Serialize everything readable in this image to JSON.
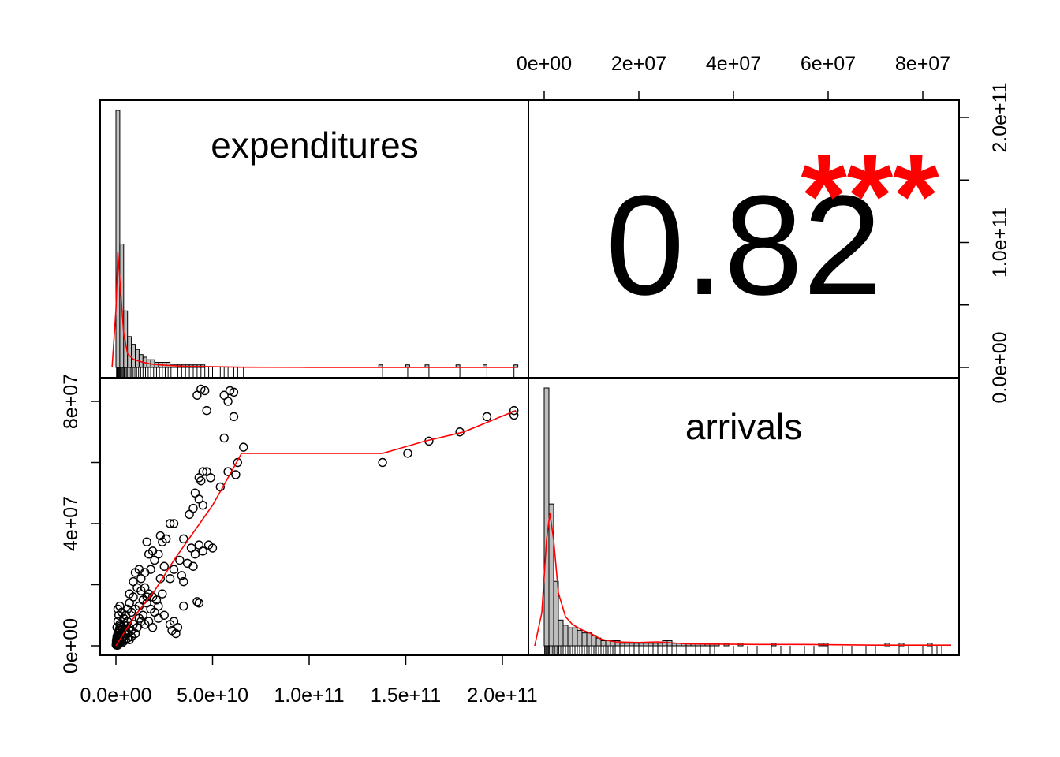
{
  "chart_data": {
    "type": "scatter",
    "title": "",
    "variables": [
      "expenditures",
      "arrivals"
    ],
    "correlation": {
      "value": "0.82",
      "stars": "***",
      "star_color": "#ff0000"
    },
    "colors": {
      "smooth_line": "#ff0000",
      "hist_fill": "#bebebe",
      "points": "#000000"
    },
    "axes": {
      "expenditures": {
        "range": [
          0,
          210000000000
        ],
        "ticks": [
          0,
          50000000000,
          100000000000,
          150000000000,
          200000000000
        ],
        "tick_labels": [
          "0.0e+00",
          "5.0e+10",
          "1.0e+11",
          "1.5e+11",
          "2.0e+11"
        ],
        "right_ticks": [
          0,
          50000000000,
          100000000000,
          150000000000,
          200000000000
        ],
        "right_tick_labels": [
          "0.0e+00",
          "",
          "1.0e+11",
          "",
          "2.0e+11"
        ]
      },
      "arrivals": {
        "range": [
          0,
          85000000
        ],
        "ticks": [
          0,
          20000000,
          40000000,
          60000000,
          80000000
        ],
        "tick_labels": [
          "0e+00",
          "2e+07",
          "4e+07",
          "6e+07",
          "8e+07"
        ],
        "left_ticks": [
          0,
          20000000,
          40000000,
          60000000,
          80000000
        ],
        "left_tick_labels": [
          "0e+00",
          "",
          "4e+07",
          "",
          "8e+07"
        ]
      }
    },
    "hist_expenditures": {
      "bin_width": 2000000000,
      "counts": [
        100,
        48,
        22,
        12,
        9,
        7,
        5,
        4,
        3,
        3,
        2,
        2,
        2,
        2,
        1,
        1,
        1,
        1,
        1,
        1,
        1,
        1,
        1,
        0,
        0,
        0,
        0,
        0,
        0,
        0,
        0,
        0,
        0,
        0,
        0,
        0,
        0,
        0,
        0,
        0,
        0,
        0,
        0,
        0,
        0,
        0,
        0,
        0,
        0,
        0,
        0,
        0,
        0,
        0,
        0,
        0,
        0,
        0,
        0,
        0,
        0,
        0,
        0,
        0,
        0,
        0,
        0,
        0,
        1,
        0,
        0,
        0,
        0,
        0,
        0,
        1,
        0,
        0,
        0,
        0,
        1,
        0,
        0,
        0,
        0,
        0,
        0,
        0,
        1,
        0,
        0,
        0,
        0,
        0,
        0,
        1,
        0,
        0,
        0,
        0,
        0,
        0,
        0,
        1
      ]
    },
    "hist_arrivals": {
      "bin_width": 1000000,
      "counts": [
        100,
        55,
        25,
        10,
        8,
        7,
        7,
        6,
        5,
        5,
        4,
        3,
        2,
        2,
        2,
        2,
        1,
        1,
        1,
        1,
        1,
        1,
        1,
        1,
        1,
        2,
        2,
        1,
        1,
        1,
        1,
        1,
        1,
        1,
        1,
        1,
        1,
        0,
        1,
        0,
        0,
        1,
        0,
        0,
        0,
        0,
        0,
        0,
        1,
        0,
        0,
        0,
        0,
        0,
        0,
        0,
        0,
        0,
        1,
        1,
        0,
        0,
        0,
        0,
        0,
        0,
        0,
        0,
        0,
        0,
        0,
        0,
        1,
        0,
        0,
        1,
        0,
        0,
        0,
        0,
        0,
        1,
        0
      ]
    },
    "density_expenditures": [
      [
        -2000000000,
        0
      ],
      [
        0,
        50
      ],
      [
        1000000000,
        100
      ],
      [
        2500000000,
        65
      ],
      [
        4000000000,
        30
      ],
      [
        6000000000,
        12
      ],
      [
        9000000000,
        7
      ],
      [
        13000000000,
        5
      ],
      [
        18000000000,
        3
      ],
      [
        25000000000,
        2
      ],
      [
        35000000000,
        1
      ],
      [
        50000000000,
        0.6
      ],
      [
        65000000000,
        0.2
      ],
      [
        100000000000,
        0.1
      ],
      [
        207000000000,
        0.1
      ]
    ],
    "density_arrivals": [
      [
        -2000000,
        0
      ],
      [
        -500000,
        25
      ],
      [
        500000,
        80
      ],
      [
        1200000,
        100
      ],
      [
        2000000,
        80
      ],
      [
        3000000,
        40
      ],
      [
        4500000,
        22
      ],
      [
        6000000,
        16
      ],
      [
        8000000,
        12
      ],
      [
        10000000,
        9
      ],
      [
        12000000,
        5
      ],
      [
        15000000,
        3
      ],
      [
        20000000,
        2.5
      ],
      [
        24000000,
        3
      ],
      [
        30000000,
        1.5
      ],
      [
        45000000,
        1
      ],
      [
        55000000,
        1
      ],
      [
        70000000,
        0.5
      ],
      [
        86000000,
        0.5
      ]
    ],
    "scatter_points": [
      [
        42000000000.0,
        82000000.0
      ],
      [
        44000000000.0,
        84000000.0
      ],
      [
        46000000000.0,
        83500000.0
      ],
      [
        56000000000.0,
        82000000.0
      ],
      [
        59000000000.0,
        83500000.0
      ],
      [
        61000000000.0,
        83000000.0
      ],
      [
        47000000000.0,
        77000000.0
      ],
      [
        58000000000.0,
        80000000.0
      ],
      [
        61000000000.0,
        75000000.0
      ],
      [
        66000000000.0,
        65000000.0
      ],
      [
        63000000000.0,
        60000000.0
      ],
      [
        56000000000.0,
        68000000.0
      ],
      [
        58000000000.0,
        57000000.0
      ],
      [
        62000000000.0,
        56000000.0
      ],
      [
        54000000000.0,
        52000000.0
      ],
      [
        45000000000.0,
        57000000.0
      ],
      [
        43000000000.0,
        55000000.0
      ],
      [
        44000000000.0,
        54000000.0
      ],
      [
        47000000000.0,
        57000000.0
      ],
      [
        49000000000.0,
        55000000.0
      ],
      [
        41000000000.0,
        50000000.0
      ],
      [
        43000000000.0,
        48000000.0
      ],
      [
        40000000000.0,
        45000000.0
      ],
      [
        45000000000.0,
        46000000.0
      ],
      [
        38000000000.0,
        43000000.0
      ],
      [
        35000000000.0,
        35000000.0
      ],
      [
        39000000000.0,
        32000000.0
      ],
      [
        41000000000.0,
        30000000.0
      ],
      [
        43000000000.0,
        33000000.0
      ],
      [
        45000000000.0,
        31000000.0
      ],
      [
        48000000000.0,
        33000000.0
      ],
      [
        50000000000.0,
        32000000.0
      ],
      [
        40000000000.0,
        26000000.0
      ],
      [
        37000000000.0,
        27000000.0
      ],
      [
        34000000000.0,
        23000000.0
      ],
      [
        35000000000.0,
        21000000.0
      ],
      [
        33000000000.0,
        28000000.0
      ],
      [
        28000000000.0,
        40000000.0
      ],
      [
        30000000000.0,
        40000000.0
      ],
      [
        26000000000.0,
        35000000.0
      ],
      [
        23000000000.0,
        36000000.0
      ],
      [
        24000000000.0,
        34000000.0
      ],
      [
        22000000000.0,
        30000000.0
      ],
      [
        20000000000.0,
        28000000.0
      ],
      [
        25000000000.0,
        26000000.0
      ],
      [
        23000000000.0,
        22000000.0
      ],
      [
        28000000000.0,
        22000000.0
      ],
      [
        30000000000.0,
        25000000.0
      ],
      [
        16000000000.0,
        34000000.0
      ],
      [
        19000000000.0,
        31000000.0
      ],
      [
        17000000000.0,
        30000000.0
      ],
      [
        18000000000.0,
        25000000.0
      ],
      [
        15000000000.0,
        24000000.0
      ],
      [
        13000000000.0,
        22000000.0
      ],
      [
        12000000000.0,
        25000000.0
      ],
      [
        10000000000.0,
        24000000.0
      ],
      [
        9000000000.0,
        21000000.0
      ],
      [
        11000000000.0,
        19000000.0
      ],
      [
        13000000000.0,
        18000000.0
      ],
      [
        15000000000.0,
        19000000.0
      ],
      [
        17000000000.0,
        17000000.0
      ],
      [
        19000000000.0,
        16000000.0
      ],
      [
        21000000000.0,
        15000000.0
      ],
      [
        22000000000.0,
        13000000.0
      ],
      [
        24000000000.0,
        17000000.0
      ],
      [
        35000000000.0,
        13000000.0
      ],
      [
        43000000000.0,
        14000000.0
      ],
      [
        42000000000.0,
        14500000.0
      ],
      [
        28000000000.0,
        7000000.0
      ],
      [
        30000000000.0,
        8000000.0
      ],
      [
        32000000000.0,
        6000000.0
      ],
      [
        29000000000.0,
        5000000.0
      ],
      [
        31000000000.0,
        4000000.0
      ],
      [
        16000000000.0,
        14000000.0
      ],
      [
        18000000000.0,
        12000000.0
      ],
      [
        20000000000.0,
        11000000.0
      ],
      [
        14000000000.0,
        10000000.0
      ],
      [
        12000000000.0,
        13000000.0
      ],
      [
        10000000000.0,
        12000000.0
      ],
      [
        8000000000.0,
        11000000.0
      ],
      [
        7000000000.0,
        14000000.0
      ],
      [
        6000000000.0,
        12000000.0
      ],
      [
        5000000000.0,
        10000000.0
      ],
      [
        4000000000.0,
        9000000.0
      ],
      [
        3000000000.0,
        11000000.0
      ],
      [
        2000000000.0,
        13000000.0
      ],
      [
        1000000000.0,
        12000000.0
      ],
      [
        1500000000.0,
        10000000.0
      ],
      [
        1000000000.0,
        8000000.0
      ],
      [
        2000000000.0,
        7000000.0
      ],
      [
        3000000000.0,
        6000000.0
      ],
      [
        4000000000.0,
        7000000.0
      ],
      [
        5000000000.0,
        5000000.0
      ],
      [
        6000000000.0,
        8000000.0
      ],
      [
        7000000000.0,
        6000000.0
      ],
      [
        8000000000.0,
        5000000.0
      ],
      [
        9000000000.0,
        7000000.0
      ],
      [
        11000000000.0,
        6000000.0
      ],
      [
        13000000000.0,
        8000000.0
      ],
      [
        15000000000.0,
        7000000.0
      ],
      [
        17000000000.0,
        8000000.0
      ],
      [
        19000000000.0,
        6000000.0
      ],
      [
        22000000000.0,
        9000000.0
      ],
      [
        25000000000.0,
        10000000.0
      ],
      [
        10000000000.0,
        4000000.0
      ],
      [
        8000000000.0,
        3000000.0
      ],
      [
        6000000000.0,
        4000000.0
      ],
      [
        4000000000.0,
        3000000.0
      ],
      [
        3000000000.0,
        4000000.0
      ],
      [
        2000000000.0,
        5000000.0
      ],
      [
        1000000000.0,
        4000000.0
      ],
      [
        500000000.0,
        6000000.0
      ],
      [
        500000000.0,
        3000000.0
      ],
      [
        1000000000.0,
        2000000.0
      ],
      [
        1500000000.0,
        3000000.0
      ],
      [
        2000000000.0,
        2500000.0
      ],
      [
        2500000000.0,
        3500000.0
      ],
      [
        3000000000.0,
        2000000.0
      ],
      [
        4000000000.0,
        1500000.0
      ],
      [
        5000000000.0,
        2000000.0
      ],
      [
        6000000000.0,
        2500000.0
      ],
      [
        7000000000.0,
        2000000.0
      ],
      [
        300000000.0,
        2000000.0
      ],
      [
        300000000.0,
        1000000.0
      ],
      [
        600000000.0,
        1500000.0
      ],
      [
        800000000.0,
        1000000.0
      ],
      [
        1000000000.0,
        500000.0
      ],
      [
        1200000000.0,
        1200000.0
      ],
      [
        1500000000.0,
        800000.0
      ],
      [
        2000000000.0,
        1000000.0
      ],
      [
        2500000000.0,
        1400000.0
      ],
      [
        3000000000.0,
        900000.0
      ],
      [
        200000000.0,
        500000.0
      ],
      [
        100000000.0,
        300000.0
      ],
      [
        400000000.0,
        400000.0
      ],
      [
        500000000.0,
        200000.0
      ],
      [
        700000000.0,
        300000.0
      ],
      [
        900000000.0,
        200000.0
      ],
      [
        200000000.0,
        1500000.0
      ],
      [
        1200000000.0,
        4500000.0
      ],
      [
        1800000000.0,
        5500000.0
      ],
      [
        2200000000.0,
        6500000.0
      ],
      [
        3500000000.0,
        5500000.0
      ],
      [
        4500000000.0,
        4500000.0
      ],
      [
        5500000000.0,
        6500000.0
      ],
      [
        12000000000.0,
        9000000.0
      ],
      [
        14000000000.0,
        15000000.0
      ],
      [
        16000000000.0,
        16000000.0
      ],
      [
        9000000000.0,
        16000000.0
      ],
      [
        7000000000.0,
        17000000.0
      ],
      [
        138000000000.0,
        60000000.0
      ],
      [
        151000000000.0,
        63000000.0
      ],
      [
        162000000000.0,
        67000000.0
      ],
      [
        178000000000.0,
        70000000.0
      ],
      [
        192000000000.0,
        75000000.0
      ],
      [
        206000000000.0,
        77000000.0
      ],
      [
        206000000000.0,
        75500000.0
      ]
    ],
    "smooth_line": [
      [
        0,
        0
      ],
      [
        10000000000.0,
        10000000.0
      ],
      [
        20000000000.0,
        18000000.0
      ],
      [
        30000000000.0,
        28000000.0
      ],
      [
        40000000000.0,
        37000000.0
      ],
      [
        50000000000.0,
        46000000.0
      ],
      [
        58000000000.0,
        55000000.0
      ],
      [
        65000000000.0,
        63000000.0
      ],
      [
        138000000000.0,
        63000000.0
      ],
      [
        160000000000.0,
        67000000.0
      ],
      [
        180000000000.0,
        70000000.0
      ],
      [
        207000000000.0,
        77000000.0
      ]
    ],
    "rug_expenditures": [
      300000000.0,
      600000000.0,
      900000000.0,
      1200000000.0,
      1600000000.0,
      2000000000.0,
      2400000000.0,
      2800000000.0,
      3300000000.0,
      3800000000.0,
      4300000000.0,
      4800000000.0,
      5400000000.0,
      6000000000.0,
      6700000000.0,
      7400000000.0,
      8100000000.0,
      8900000000.0,
      9800000000.0,
      10700000000.0,
      11700000000.0,
      12800000000.0,
      14000000000.0,
      15300000000.0,
      16700000000.0,
      18000000000.0,
      19500000000.0,
      21000000000.0,
      22500000000.0,
      24000000000.0,
      25500000000.0,
      27000000000.0,
      28500000000.0,
      30000000000.0,
      32000000000.0,
      34000000000.0,
      36000000000.0,
      38000000000.0,
      40000000000.0,
      42000000000.0,
      44000000000.0,
      46000000000.0,
      48000000000.0,
      50000000000.0,
      54000000000.0,
      56000000000.0,
      58000000000.0,
      61000000000.0,
      63000000000.0,
      66000000000.0,
      138000000000.0,
      151000000000.0,
      162000000000.0,
      178000000000.0,
      192000000000.0,
      206000000000.0
    ],
    "rug_arrivals": [
      100000.0,
      300000.0,
      500000.0,
      700000.0,
      900000.0,
      1100000.0,
      1400000.0,
      1700000.0,
      2000000.0,
      2300000.0,
      2700000.0,
      3100000.0,
      3500000.0,
      4000000.0,
      4500000.0,
      5000000.0,
      5500000.0,
      6000000.0,
      6500000.0,
      7000000.0,
      7500000.0,
      8000000.0,
      8500000.0,
      9000000.0,
      9500000.0,
      10000000.0,
      10500000.0,
      11000000.0,
      11500000.0,
      12000000.0,
      12500000.0,
      13000000.0,
      13500000.0,
      14000000.0,
      14500000.0,
      15000000.0,
      16000000.0,
      17000000.0,
      18000000.0,
      19000000.0,
      20000000.0,
      21000000.0,
      22000000.0,
      23000000.0,
      24000000.0,
      25000000.0,
      26000000.0,
      27000000.0,
      28000000.0,
      30000000.0,
      32000000.0,
      33000000.0,
      35000000.0,
      36000000.0,
      40000000.0,
      43000000.0,
      45000000.0,
      48000000.0,
      50000000.0,
      52000000.0,
      55000000.0,
      57000000.0,
      60000000.0,
      63000000.0,
      65000000.0,
      68000000.0,
      70000000.0,
      75000000.0,
      77000000.0,
      80000000.0,
      82000000.0,
      83000000.0,
      84000000.0
    ]
  }
}
